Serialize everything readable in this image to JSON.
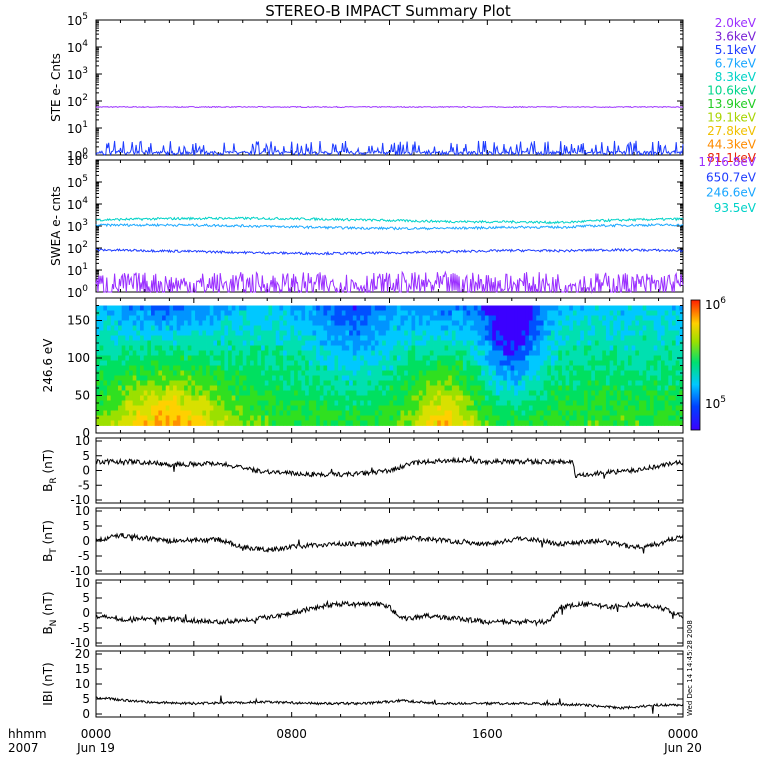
{
  "title": "STEREO-B IMPACT Summary Plot",
  "time_axis": {
    "label_format": "hhmm",
    "year": "2007",
    "ticks": [
      {
        "hour": 0,
        "label": "0000",
        "date": "Jun 19"
      },
      {
        "hour": 8,
        "label": "0800",
        "date": ""
      },
      {
        "hour": 16,
        "label": "1600",
        "date": ""
      },
      {
        "hour": 24,
        "label": "0000",
        "date": "Jun 20"
      }
    ]
  },
  "side_caption": "Wed Dec 14 14:45:28 2008",
  "chart_data": [
    {
      "type": "line",
      "name": "ste",
      "ylabel": "STE e- Cnts",
      "yscale": "log",
      "ylim": [
        1,
        100000
      ],
      "yticks": [
        {
          "base": "10",
          "exp": "0"
        },
        {
          "base": "10",
          "exp": "1"
        },
        {
          "base": "10",
          "exp": "2"
        },
        {
          "base": "10",
          "exp": "3"
        },
        {
          "base": "10",
          "exp": "4"
        },
        {
          "base": "10",
          "exp": "5"
        }
      ],
      "legend": [
        {
          "label": "2.0keV",
          "color": "#9b30ff"
        },
        {
          "label": "3.6keV",
          "color": "#7a1fd6"
        },
        {
          "label": "5.1keV",
          "color": "#1e3cff"
        },
        {
          "label": "6.7keV",
          "color": "#1aa7ff"
        },
        {
          "label": "8.3keV",
          "color": "#00d2c8"
        },
        {
          "label": "10.6keV",
          "color": "#00d58a"
        },
        {
          "label": "13.9keV",
          "color": "#22cc22"
        },
        {
          "label": "19.1keV",
          "color": "#a8d400"
        },
        {
          "label": "27.8keV",
          "color": "#f0c000"
        },
        {
          "label": "44.3keV",
          "color": "#ff8c00"
        },
        {
          "label": "81.1keV",
          "color": "#e8220a"
        }
      ],
      "series": [
        {
          "label": "2.0keV",
          "level": 60,
          "noise": "flat",
          "color": "#9b30ff"
        },
        {
          "label": "5.1keV",
          "level": 1.2,
          "noise": "spiky",
          "color": "#1e3cff"
        }
      ]
    },
    {
      "type": "line",
      "name": "swea",
      "ylabel": "SWEA e- cnts",
      "yscale": "log",
      "ylim": [
        1,
        1000000
      ],
      "yticks": [
        {
          "base": "10",
          "exp": "0"
        },
        {
          "base": "10",
          "exp": "1"
        },
        {
          "base": "10",
          "exp": "2"
        },
        {
          "base": "10",
          "exp": "3"
        },
        {
          "base": "10",
          "exp": "4"
        },
        {
          "base": "10",
          "exp": "5"
        },
        {
          "base": "10",
          "exp": "6"
        }
      ],
      "legend": [
        {
          "label": "1716.8eV",
          "color": "#9b30ff"
        },
        {
          "label": "650.7eV",
          "color": "#1e3cff"
        },
        {
          "label": "246.6eV",
          "color": "#1aa7ff"
        },
        {
          "label": "93.5eV",
          "color": "#00d2c8"
        }
      ],
      "series": [
        {
          "label": "93.5eV",
          "level": 1900,
          "color": "#00d2c8"
        },
        {
          "label": "246.6eV",
          "level": 950,
          "color": "#1aa7ff"
        },
        {
          "label": "650.7eV",
          "level": 70,
          "color": "#1e3cff"
        },
        {
          "label": "1716.8eV",
          "level": 2,
          "color": "#9b30ff"
        }
      ]
    },
    {
      "type": "heatmap",
      "name": "pad",
      "ylabel": "246.6 eV",
      "ylim": [
        0,
        180
      ],
      "yticks": [
        "0",
        "50",
        "100",
        "150"
      ],
      "colorbar": {
        "top_label": "10",
        "top_exp": "6",
        "bottom_label": "10",
        "bottom_exp": "5",
        "scale": "log"
      }
    },
    {
      "type": "line",
      "name": "br",
      "ylabel_base": "B",
      "ylabel_sub": "R",
      "ylabel_unit": " (nT)",
      "ylim": [
        -10,
        10
      ],
      "yticks": [
        "10",
        "5",
        "0",
        "-5",
        "-10"
      ],
      "profile": [
        [
          0,
          3
        ],
        [
          1.5,
          3
        ],
        [
          3,
          2
        ],
        [
          5,
          2.5
        ],
        [
          6.5,
          0
        ],
        [
          8,
          -1
        ],
        [
          9.5,
          -1.5
        ],
        [
          11,
          -1
        ],
        [
          12,
          0
        ],
        [
          13,
          2.5
        ],
        [
          14.5,
          3.5
        ],
        [
          16,
          3
        ],
        [
          18,
          3
        ],
        [
          19.5,
          3
        ],
        [
          19.6,
          -2
        ],
        [
          20.5,
          -1
        ],
        [
          22,
          0
        ],
        [
          23,
          1.5
        ],
        [
          24,
          3
        ]
      ]
    },
    {
      "type": "line",
      "name": "bt",
      "ylabel_base": "B",
      "ylabel_sub": "T",
      "ylabel_unit": " (nT)",
      "ylim": [
        -10,
        10
      ],
      "yticks": [
        "10",
        "5",
        "0",
        "-5",
        "-10"
      ],
      "profile": [
        [
          0,
          0
        ],
        [
          1,
          2
        ],
        [
          3,
          0
        ],
        [
          5,
          0.5
        ],
        [
          6,
          -2
        ],
        [
          7,
          -3
        ],
        [
          8,
          -2
        ],
        [
          9.5,
          -1
        ],
        [
          11,
          -1
        ],
        [
          12,
          0
        ],
        [
          13,
          1
        ],
        [
          14.5,
          0
        ],
        [
          16,
          -1
        ],
        [
          17.5,
          1
        ],
        [
          19,
          -1
        ],
        [
          20.5,
          0
        ],
        [
          22,
          -2
        ],
        [
          23,
          -1
        ],
        [
          24,
          2
        ]
      ]
    },
    {
      "type": "line",
      "name": "bn",
      "ylabel_base": "B",
      "ylabel_sub": "N",
      "ylabel_unit": " (nT)",
      "ylim": [
        -10,
        10
      ],
      "yticks": [
        "10",
        "5",
        "0",
        "-5",
        "-10"
      ],
      "profile": [
        [
          0,
          -1
        ],
        [
          1,
          -2
        ],
        [
          3,
          -2
        ],
        [
          5,
          -3
        ],
        [
          6.5,
          -2
        ],
        [
          8,
          0
        ],
        [
          9,
          2
        ],
        [
          10,
          3
        ],
        [
          11.5,
          3
        ],
        [
          12,
          2
        ],
        [
          12.5,
          -2
        ],
        [
          13.5,
          -1
        ],
        [
          15,
          -2
        ],
        [
          16,
          -3
        ],
        [
          17.5,
          -3
        ],
        [
          18.5,
          -3
        ],
        [
          19,
          2
        ],
        [
          20,
          3
        ],
        [
          21,
          2
        ],
        [
          22,
          3
        ],
        [
          23,
          2
        ],
        [
          24,
          -1
        ]
      ]
    },
    {
      "type": "line",
      "name": "bmag",
      "ylabel_base": "IBI",
      "ylabel_sub": "",
      "ylabel_unit": " (nT)",
      "ylim": [
        0,
        20
      ],
      "yticks": [
        "20",
        "15",
        "10",
        "5",
        "0"
      ],
      "profile": [
        [
          0,
          5.5
        ],
        [
          2,
          4
        ],
        [
          4,
          3.5
        ],
        [
          7,
          4
        ],
        [
          9,
          3.5
        ],
        [
          11,
          3.5
        ],
        [
          12.5,
          4.5
        ],
        [
          14,
          3.5
        ],
        [
          16,
          3.5
        ],
        [
          18,
          3.5
        ],
        [
          20,
          3
        ],
        [
          21.5,
          2
        ],
        [
          23,
          3
        ],
        [
          24,
          3
        ]
      ]
    }
  ]
}
